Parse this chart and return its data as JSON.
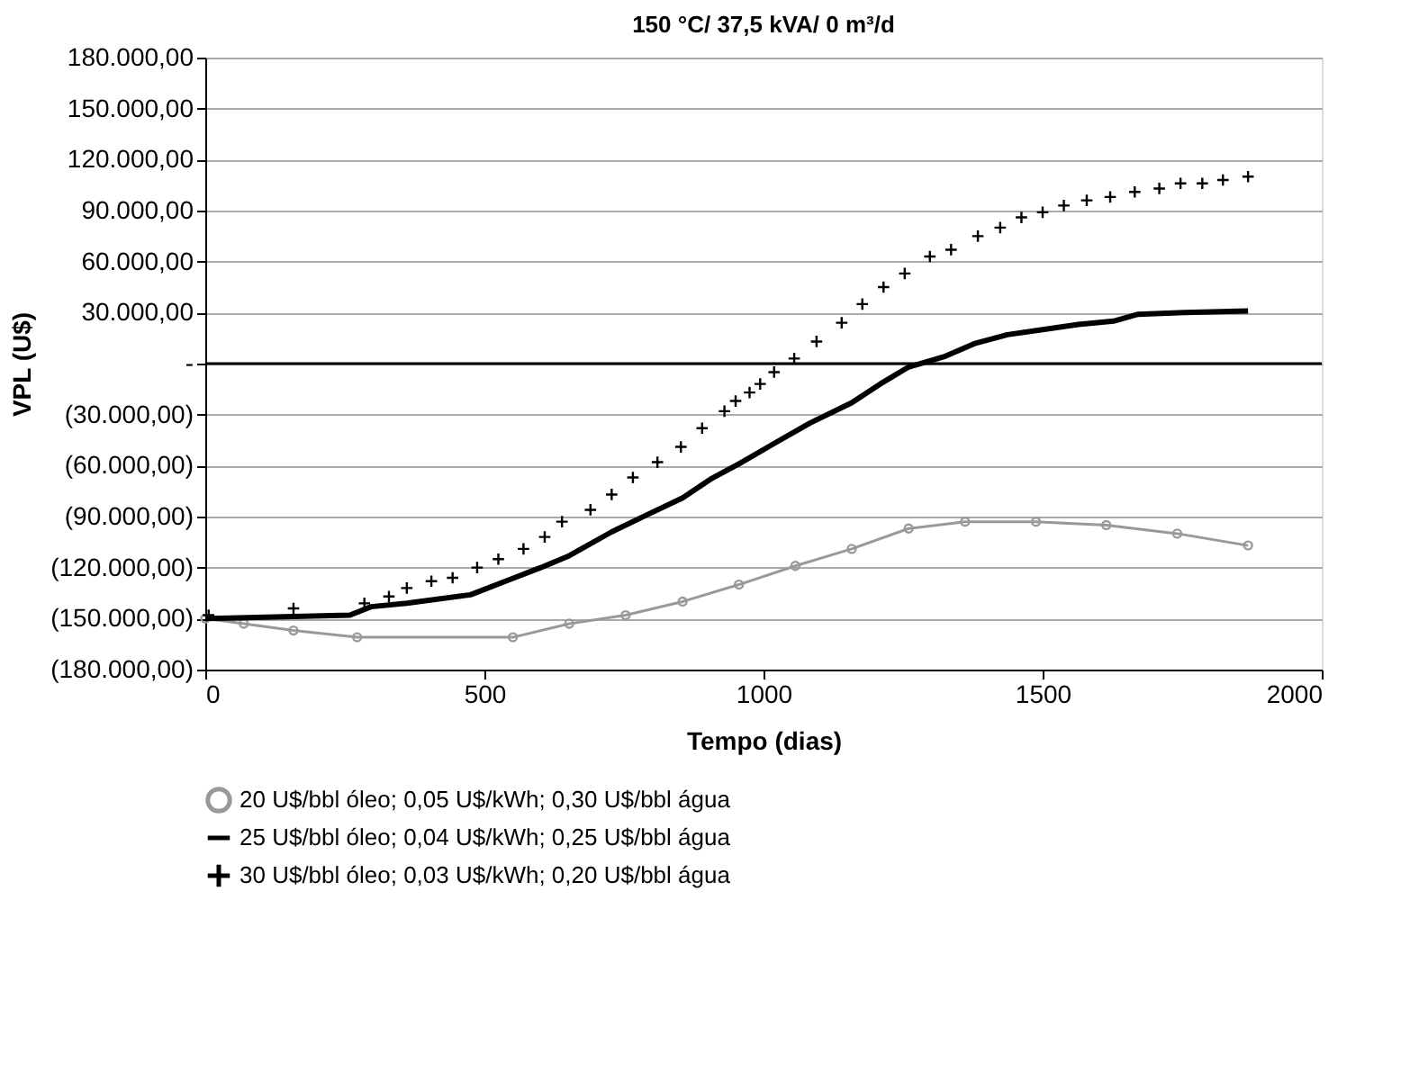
{
  "chart_data": {
    "type": "line",
    "title": "150 °C/ 37,5 kVA/ 0 m³/d",
    "xlabel": "Tempo (dias)",
    "ylabel": "VPL (U$)",
    "xlim": [
      0,
      2000
    ],
    "xticks": [
      0,
      500,
      1000,
      1500,
      2000
    ],
    "ylim": [
      -180000,
      180000
    ],
    "yticks": [
      {
        "value": 180000,
        "label": "180.000,00"
      },
      {
        "value": 150000,
        "label": "150.000,00"
      },
      {
        "value": 120000,
        "label": "120.000,00"
      },
      {
        "value": 90000,
        "label": "90.000,00"
      },
      {
        "value": 60000,
        "label": "60.000,00"
      },
      {
        "value": 30000,
        "label": "30.000,00"
      },
      {
        "value": 0,
        "label": "-"
      },
      {
        "value": -30000,
        "label": "(30.000,00)"
      },
      {
        "value": -60000,
        "label": "(60.000,00)"
      },
      {
        "value": -90000,
        "label": "(90.000,00)"
      },
      {
        "value": -120000,
        "label": "(120.000,00)"
      },
      {
        "value": -150000,
        "label": "(150.000,00)"
      },
      {
        "value": -180000,
        "label": "(180.000,00)"
      }
    ],
    "grid": "y",
    "legend": "bottom",
    "ref_lines": [
      {
        "axis": "y",
        "value": 0,
        "color": "#000000"
      }
    ],
    "series": [
      {
        "name": "20 U$/bbl óleo; 0,05 U$/kWh; 0,30 U$/bbl água",
        "marker": "circle",
        "color": "#999999",
        "x": [
          0,
          69,
          158,
          272,
          551,
          652,
          753,
          855,
          956,
          1057,
          1158,
          1260,
          1361,
          1488,
          1614,
          1741,
          1868
        ],
        "values": [
          -150000,
          -153000,
          -157000,
          -161000,
          -161000,
          -153000,
          -148000,
          -140000,
          -130000,
          -119000,
          -109000,
          -97000,
          -93000,
          -93000,
          -95000,
          -100000,
          -107000
        ]
      },
      {
        "name": "25 U$/bbl óleo; 0,04 U$/kWh; 0,25 U$/bbl água",
        "marker": "none",
        "color": "#000000",
        "x": [
          0,
          259,
          297,
          361,
          475,
          538,
          601,
          652,
          728,
          791,
          855,
          905,
          956,
          1019,
          1083,
          1158,
          1209,
          1260,
          1323,
          1380,
          1437,
          1500,
          1564,
          1627,
          1671,
          1754,
          1868
        ],
        "values": [
          -150000,
          -148000,
          -143000,
          -141000,
          -136000,
          -128000,
          -120000,
          -113000,
          -99000,
          -89000,
          -79000,
          -68000,
          -59000,
          -47000,
          -35000,
          -23000,
          -12000,
          -2000,
          4000,
          12000,
          17000,
          20000,
          23000,
          25000,
          29000,
          30000,
          31000
        ]
      },
      {
        "name": "30 U$/bbl óleo; 0,03 U$/kWh; 0,20 U$/bbl água",
        "type": "scatter",
        "marker": "cross",
        "color": "#000000",
        "x": [
          6,
          158,
          285,
          329,
          361,
          405,
          443,
          487,
          525,
          570,
          608,
          639,
          690,
          728,
          766,
          810,
          852,
          890,
          930,
          950,
          975,
          994,
          1019,
          1055,
          1095,
          1140,
          1177,
          1215,
          1253,
          1298,
          1336,
          1384,
          1424,
          1462,
          1500,
          1538,
          1579,
          1621,
          1665,
          1709,
          1747,
          1786,
          1823,
          1868
        ],
        "values": [
          -148000,
          -144000,
          -141000,
          -137000,
          -132000,
          -128000,
          -126000,
          -120000,
          -115000,
          -109000,
          -102000,
          -93000,
          -86000,
          -77000,
          -67000,
          -58000,
          -49000,
          -38000,
          -28000,
          -22000,
          -17000,
          -12000,
          -5000,
          3000,
          13000,
          24000,
          35000,
          45000,
          53000,
          63000,
          67000,
          75000,
          80000,
          86000,
          89000,
          93000,
          96000,
          98000,
          101000,
          103000,
          106000,
          106000,
          108000,
          110000
        ]
      }
    ]
  }
}
